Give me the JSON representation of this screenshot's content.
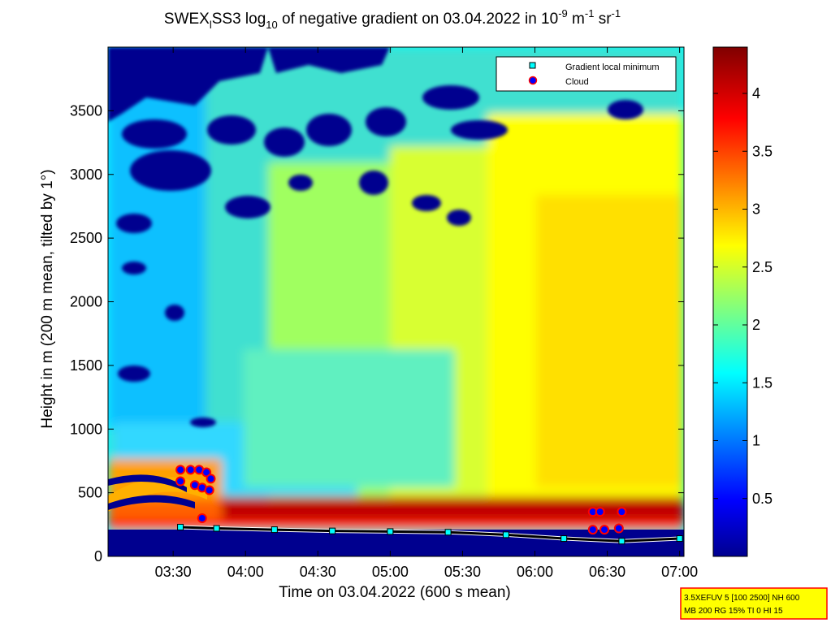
{
  "chart_data": {
    "type": "heatmap",
    "title": {
      "prefix": "SWEX",
      "sub1": "l",
      "part2": "SS3 log",
      "sub2": "10",
      "part3": " of negative gradient on 03.04.2022 in 10",
      "sup1": "-9",
      "part4": " m",
      "sup2": "-1",
      "part5": " sr",
      "sup3": "-1"
    },
    "xlabel": "Time on 03.04.2022 (600 s mean)",
    "ylabel": "Height in m (200 m mean, tilted by 1°)",
    "x_ticks": [
      "03:30",
      "04:00",
      "04:30",
      "05:00",
      "05:30",
      "06:00",
      "06:30",
      "07:00"
    ],
    "x_tick_hours": [
      3.5,
      4.0,
      4.5,
      5.0,
      5.5,
      6.0,
      6.5,
      7.0
    ],
    "xlim_hours": [
      3.05,
      7.03
    ],
    "y_ticks": [
      "0",
      "500",
      "1000",
      "1500",
      "2000",
      "2500",
      "3000",
      "3500"
    ],
    "y_tick_values": [
      0,
      500,
      1000,
      1500,
      2000,
      2500,
      3000,
      3500
    ],
    "ylim": [
      0,
      4000
    ],
    "colorbar": {
      "ticks": [
        "0.5",
        "1",
        "1.5",
        "2",
        "2.5",
        "3",
        "3.5",
        "4"
      ],
      "tick_values": [
        0.5,
        1,
        1.5,
        2,
        2.5,
        3,
        3.5,
        4
      ],
      "range": [
        0,
        4.4
      ],
      "colormap": "jet"
    },
    "legend": {
      "placement": "top-right",
      "items": [
        {
          "label": "Gradient local minimum",
          "marker": "square",
          "color": "#00ffff"
        },
        {
          "label": "Cloud",
          "marker": "circle",
          "color": "#0000ff"
        }
      ]
    },
    "gradient_local_minimum_m": [
      {
        "t": 3.55,
        "h": 230
      },
      {
        "t": 3.8,
        "h": 220
      },
      {
        "t": 4.2,
        "h": 210
      },
      {
        "t": 4.6,
        "h": 200
      },
      {
        "t": 5.0,
        "h": 195
      },
      {
        "t": 5.4,
        "h": 190
      },
      {
        "t": 5.8,
        "h": 170
      },
      {
        "t": 6.2,
        "h": 140
      },
      {
        "t": 6.6,
        "h": 120
      },
      {
        "t": 7.0,
        "h": 140
      }
    ],
    "clouds": [
      {
        "t": 3.55,
        "h": 680
      },
      {
        "t": 3.55,
        "h": 590
      },
      {
        "t": 3.62,
        "h": 680
      },
      {
        "t": 3.65,
        "h": 560
      },
      {
        "t": 3.68,
        "h": 680
      },
      {
        "t": 3.7,
        "h": 540
      },
      {
        "t": 3.73,
        "h": 660
      },
      {
        "t": 3.76,
        "h": 610
      },
      {
        "t": 3.75,
        "h": 520
      },
      {
        "t": 3.7,
        "h": 300
      },
      {
        "t": 6.4,
        "h": 350
      },
      {
        "t": 6.45,
        "h": 350
      },
      {
        "t": 6.6,
        "h": 350
      },
      {
        "t": 6.4,
        "h": 210
      },
      {
        "t": 6.48,
        "h": 210
      },
      {
        "t": 6.58,
        "h": 220
      }
    ]
  },
  "info_box": {
    "line1": "3.5XEFUV 5 [100 2500] NH 600",
    "line2": "MB 200 RG 15% TI 0 HI 15",
    "background": "#ffff00",
    "border": "#ff0000"
  }
}
